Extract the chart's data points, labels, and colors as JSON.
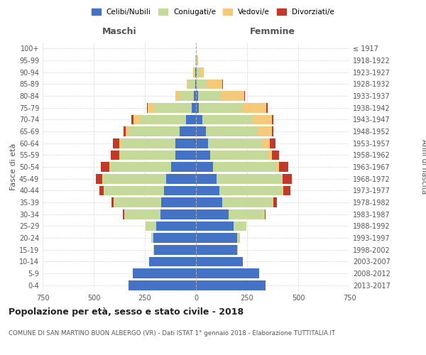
{
  "age_groups": [
    "0-4",
    "5-9",
    "10-14",
    "15-19",
    "20-24",
    "25-29",
    "30-34",
    "35-39",
    "40-44",
    "45-49",
    "50-54",
    "55-59",
    "60-64",
    "65-69",
    "70-74",
    "75-79",
    "80-84",
    "85-89",
    "90-94",
    "95-99",
    "100+"
  ],
  "birth_years": [
    "2013-2017",
    "2008-2012",
    "2003-2007",
    "1998-2002",
    "1993-1997",
    "1988-1992",
    "1983-1987",
    "1978-1982",
    "1973-1977",
    "1968-1972",
    "1963-1967",
    "1958-1962",
    "1953-1957",
    "1948-1952",
    "1943-1947",
    "1938-1942",
    "1933-1937",
    "1928-1932",
    "1923-1927",
    "1918-1922",
    "≤ 1917"
  ],
  "males": {
    "celibi": [
      330,
      310,
      230,
      205,
      210,
      195,
      175,
      170,
      155,
      145,
      120,
      100,
      100,
      80,
      50,
      20,
      10,
      5,
      3,
      1,
      0
    ],
    "coniugati": [
      0,
      0,
      0,
      5,
      10,
      50,
      175,
      230,
      295,
      310,
      300,
      270,
      265,
      250,
      220,
      185,
      70,
      30,
      8,
      2,
      0
    ],
    "vedovi": [
      0,
      0,
      0,
      0,
      0,
      1,
      1,
      2,
      3,
      3,
      5,
      5,
      10,
      15,
      35,
      30,
      20,
      10,
      3,
      1,
      0
    ],
    "divorziati": [
      0,
      0,
      0,
      0,
      0,
      2,
      5,
      10,
      20,
      30,
      40,
      40,
      30,
      10,
      10,
      5,
      0,
      0,
      0,
      0,
      0
    ]
  },
  "females": {
    "celibi": [
      340,
      310,
      230,
      200,
      200,
      185,
      160,
      130,
      115,
      100,
      85,
      70,
      60,
      50,
      30,
      15,
      10,
      5,
      3,
      1,
      0
    ],
    "coniugati": [
      0,
      0,
      0,
      5,
      15,
      60,
      175,
      245,
      310,
      320,
      310,
      285,
      265,
      255,
      245,
      210,
      115,
      50,
      15,
      3,
      0
    ],
    "vedovi": [
      0,
      0,
      0,
      0,
      0,
      1,
      1,
      2,
      3,
      5,
      10,
      15,
      35,
      65,
      95,
      120,
      110,
      75,
      20,
      5,
      1
    ],
    "divorziati": [
      0,
      0,
      0,
      0,
      0,
      2,
      5,
      20,
      35,
      45,
      45,
      35,
      30,
      10,
      10,
      5,
      5,
      2,
      0,
      0,
      0
    ]
  },
  "colors": {
    "celibi": "#4472C4",
    "coniugati": "#C5D99A",
    "vedovi": "#F5C97A",
    "divorziati": "#C0392B"
  },
  "xlim": 750,
  "title": "Popolazione per età, sesso e stato civile - 2018",
  "subtitle": "COMUNE DI SAN MARTINO BUON ALBERGO (VR) - Dati ISTAT 1° gennaio 2018 - Elaborazione TUTTITALIA.IT",
  "ylabel_left": "Fasce di età",
  "ylabel_right": "Anni di nascita",
  "xlabel_left": "Maschi",
  "xlabel_right": "Femmine",
  "legend_labels": [
    "Celibi/Nubili",
    "Coniugati/e",
    "Vedovi/e",
    "Divorziati/e"
  ],
  "background_color": "#ffffff",
  "grid_color": "#cccccc"
}
